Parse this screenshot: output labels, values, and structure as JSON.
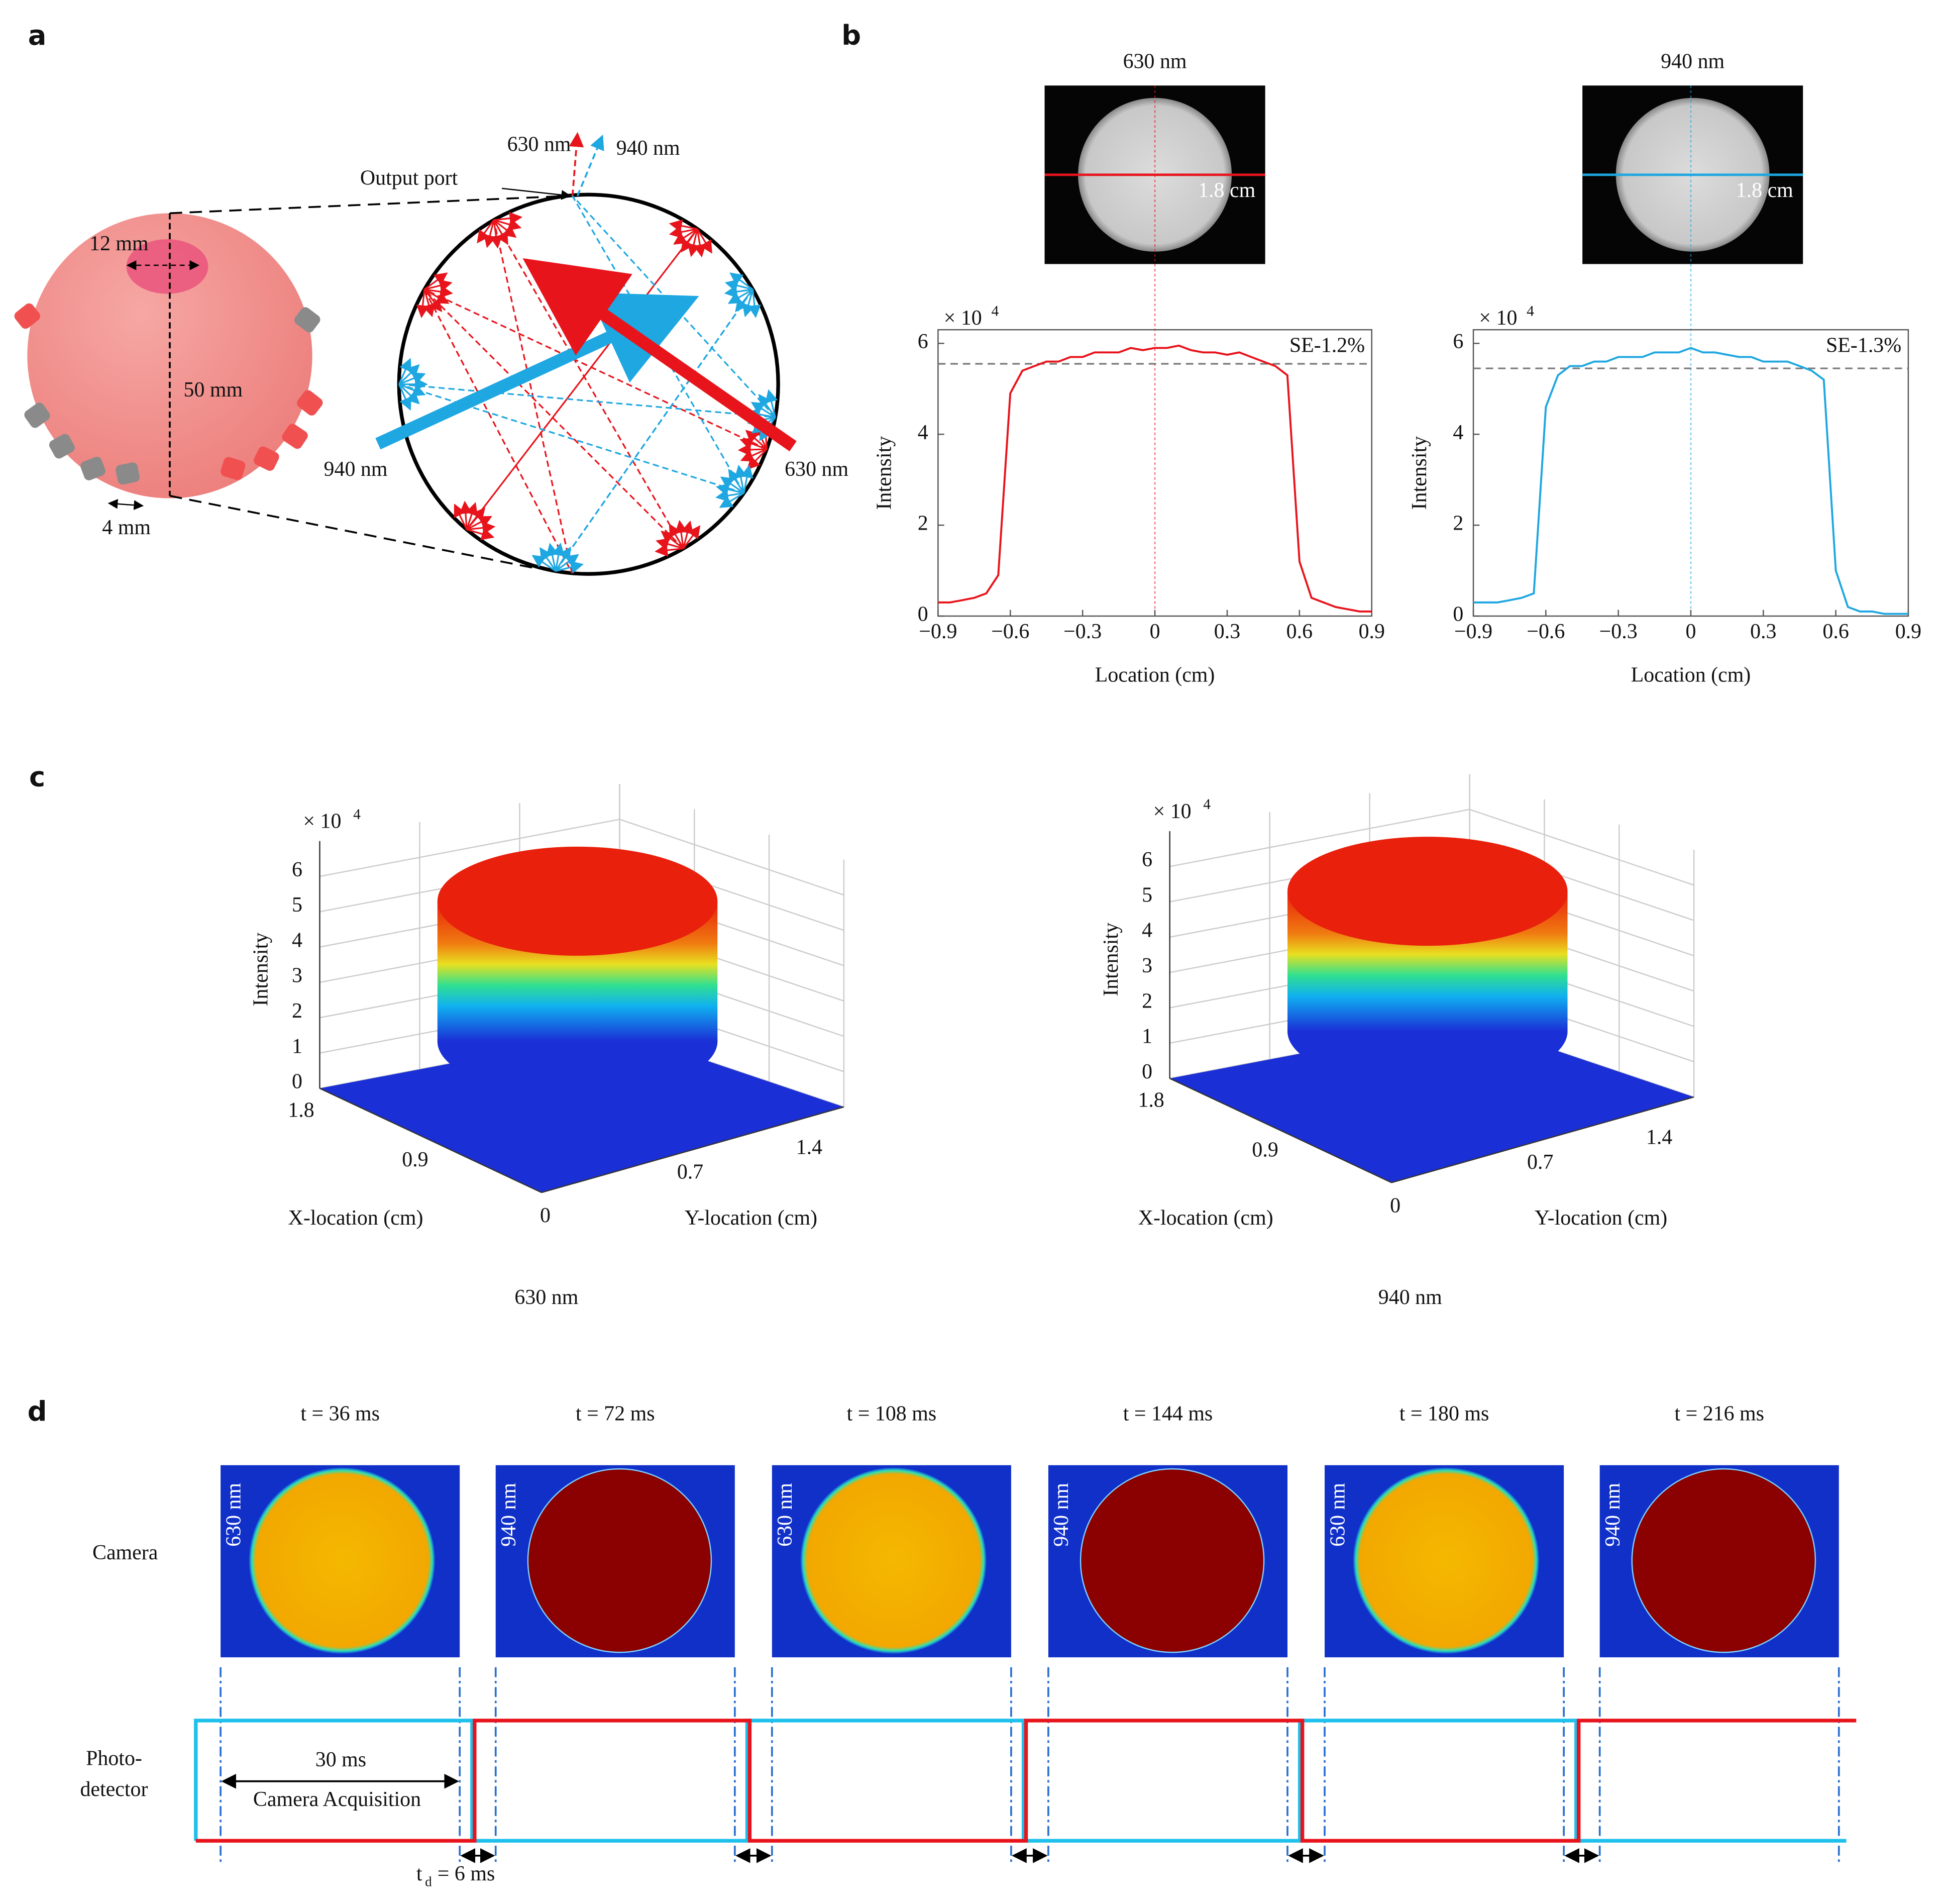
{
  "panel_a": {
    "label": "a",
    "dim_port": "12 mm",
    "dim_diameter": "50 mm",
    "dim_gap": "4 mm",
    "output_port": "Output port",
    "beam_top_red": "630 nm",
    "beam_top_blue": "940 nm",
    "beam_left": "940 nm",
    "beam_right": "630 nm"
  },
  "panel_b": {
    "label": "b",
    "images": [
      {
        "title": "630 nm",
        "scale": "1.8 cm"
      },
      {
        "title": "940 nm",
        "scale": "1.8 cm"
      }
    ]
  },
  "chart_data": [
    {
      "type": "line",
      "x": [
        -0.9,
        -0.85,
        -0.8,
        -0.75,
        -0.7,
        -0.65,
        -0.6,
        -0.55,
        -0.5,
        -0.45,
        -0.4,
        -0.35,
        -0.3,
        -0.25,
        -0.2,
        -0.15,
        -0.1,
        -0.05,
        0,
        0.05,
        0.1,
        0.15,
        0.2,
        0.25,
        0.3,
        0.35,
        0.4,
        0.45,
        0.5,
        0.55,
        0.6,
        0.65,
        0.7,
        0.75,
        0.8,
        0.85,
        0.9
      ],
      "values": [
        0.3,
        0.3,
        0.35,
        0.4,
        0.5,
        0.9,
        4.9,
        5.4,
        5.5,
        5.6,
        5.6,
        5.7,
        5.7,
        5.8,
        5.8,
        5.8,
        5.9,
        5.85,
        5.9,
        5.9,
        5.95,
        5.85,
        5.8,
        5.8,
        5.75,
        5.8,
        5.7,
        5.6,
        5.5,
        5.3,
        1.2,
        0.4,
        0.3,
        0.2,
        0.15,
        0.1,
        0.1
      ],
      "color": "#e8141c",
      "xlim": [
        -0.9,
        0.9
      ],
      "xticks": [
        {
          "value": -0.9,
          "label": "−0.9"
        },
        {
          "value": -0.6,
          "label": "−0.6"
        },
        {
          "value": -0.3,
          "label": "−0.3"
        },
        0,
        0.3,
        0.6,
        0.9
      ],
      "ylim": [
        0,
        6.3
      ],
      "yticks": [
        0,
        2,
        4,
        6
      ],
      "xlabel": "Location (cm)",
      "ylabel": "Intensity",
      "y_multiplier": "× 10",
      "y_exponent": "4",
      "annotation": "SE-1.2%",
      "reference_line": 5.55
    },
    {
      "type": "line",
      "x": [
        -0.9,
        -0.85,
        -0.8,
        -0.75,
        -0.7,
        -0.65,
        -0.6,
        -0.55,
        -0.5,
        -0.45,
        -0.4,
        -0.35,
        -0.3,
        -0.25,
        -0.2,
        -0.15,
        -0.1,
        -0.05,
        0,
        0.05,
        0.1,
        0.15,
        0.2,
        0.25,
        0.3,
        0.35,
        0.4,
        0.45,
        0.5,
        0.55,
        0.6,
        0.65,
        0.7,
        0.75,
        0.8,
        0.85,
        0.9
      ],
      "values": [
        0.3,
        0.3,
        0.3,
        0.35,
        0.4,
        0.5,
        4.6,
        5.3,
        5.5,
        5.5,
        5.6,
        5.6,
        5.7,
        5.7,
        5.7,
        5.8,
        5.8,
        5.8,
        5.9,
        5.8,
        5.8,
        5.75,
        5.7,
        5.7,
        5.6,
        5.6,
        5.6,
        5.5,
        5.4,
        5.2,
        1.0,
        0.2,
        0.1,
        0.1,
        0.05,
        0.05,
        0.05
      ],
      "color": "#1ea7e1",
      "xlim": [
        -0.9,
        0.9
      ],
      "xticks": [
        {
          "value": -0.9,
          "label": "−0.9"
        },
        {
          "value": -0.6,
          "label": "−0.6"
        },
        {
          "value": -0.3,
          "label": "−0.3"
        },
        0,
        0.3,
        0.6,
        0.9
      ],
      "ylim": [
        0,
        6.3
      ],
      "yticks": [
        0,
        2,
        4,
        6
      ],
      "xlabel": "Location (cm)",
      "ylabel": "Intensity",
      "y_multiplier": "× 10",
      "y_exponent": "4",
      "annotation": "SE-1.3%",
      "reference_line": 5.45
    }
  ],
  "panel_c": {
    "label": "c",
    "plots": [
      {
        "caption": "630 nm",
        "multiplier": "× 10",
        "exponent": "4",
        "z_label": "Intensity",
        "zticks": [
          0,
          1,
          2,
          3,
          4,
          5,
          6
        ],
        "x_label": "X-location (cm)",
        "xticks": [
          0,
          0.9,
          1.8
        ],
        "y_label": "Y-location (cm)",
        "yticks": [
          0.7,
          1.4
        ]
      },
      {
        "caption": "940 nm",
        "multiplier": "× 10",
        "exponent": "4",
        "z_label": "Intensity",
        "zticks": [
          0,
          1,
          2,
          3,
          4,
          5,
          6
        ],
        "x_label": "X-location (cm)",
        "xticks": [
          0,
          0.9,
          1.8
        ],
        "y_label": "Y-location (cm)",
        "yticks": [
          0.7,
          1.4
        ]
      }
    ]
  },
  "panel_d": {
    "label": "d",
    "frames": [
      {
        "time": "t = 36 ms",
        "wavelength": "630 nm"
      },
      {
        "time": "t = 72 ms",
        "wavelength": "940 nm"
      },
      {
        "time": "t = 108 ms",
        "wavelength": "630 nm"
      },
      {
        "time": "t = 144 ms",
        "wavelength": "940 nm"
      },
      {
        "time": "t = 180 ms",
        "wavelength": "630 nm"
      },
      {
        "time": "t = 216 ms",
        "wavelength": "940 nm"
      }
    ],
    "row_camera": "Camera",
    "row_photodetector_1": "Photo-",
    "row_photodetector_2": "detector",
    "span": "30 ms",
    "acquisition": "Camera Acquisition",
    "delay_symbol": "t",
    "delay_subscript": "d",
    "delay_value": "= 6 ms"
  }
}
